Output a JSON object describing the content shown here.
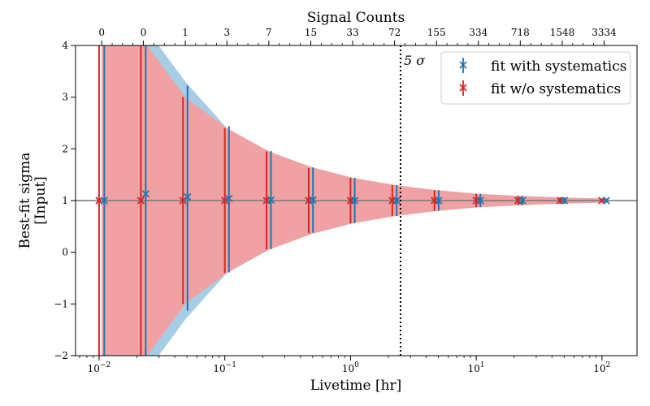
{
  "chart_data": {
    "type": "scatter",
    "title": "Signal Counts",
    "xlabel": "Livetime [hr]",
    "ylabel_line1": "Best-fit sigma",
    "ylabel_line2": "[Input]",
    "x_scale": "log",
    "xlim": [
      0.0065,
      190
    ],
    "ylim": [
      -2,
      4
    ],
    "x_ticks": [
      0.01,
      0.1,
      1,
      10,
      100
    ],
    "x_tick_labels": [
      "10−2",
      "10−1",
      "100",
      "101",
      "102"
    ],
    "y_ticks": [
      -2,
      -1,
      0,
      1,
      2,
      3,
      4
    ],
    "y_tick_labels": [
      "−2",
      "−1",
      "0",
      "1",
      "2",
      "3",
      "4"
    ],
    "top_axis_label": "Signal Counts",
    "top_ticks_livetime": [
      0.0105,
      0.0225,
      0.0485,
      0.104,
      0.224,
      0.483,
      1.04,
      2.24,
      4.83,
      10.4,
      22.4,
      48.3,
      104
    ],
    "top_tick_labels": [
      "0",
      "0",
      "1",
      "3",
      "7",
      "15",
      "33",
      "72",
      "155",
      "334",
      "718",
      "1548",
      "3334"
    ],
    "reference_line_y": 1,
    "vline": {
      "x": 2.5,
      "label": "5 σ",
      "style": "dotted"
    },
    "legend": {
      "position": "top-right",
      "entries": [
        {
          "label": "fit with systematics",
          "color": "#1f77b4"
        },
        {
          "label": "fit w/o systematics",
          "color": "#d62728"
        }
      ]
    },
    "bands": [
      {
        "series": "fit with systematics",
        "color": "#a6cde6",
        "x": [
          0.0105,
          0.0225,
          0.0485,
          0.104,
          0.224,
          0.483,
          1.04,
          2.24,
          4.83,
          10.4,
          22.4,
          48.3,
          104
        ],
        "upper": [
          4.5,
          4.4,
          3.3,
          2.4,
          1.95,
          1.65,
          1.44,
          1.3,
          1.2,
          1.13,
          1.09,
          1.06,
          1.04
        ],
        "lower": [
          -2.5,
          -2.4,
          -1.3,
          -0.4,
          0.05,
          0.35,
          0.56,
          0.7,
          0.8,
          0.87,
          0.91,
          0.94,
          0.96
        ]
      },
      {
        "series": "fit w/o systematics",
        "color": "#f0a1a3",
        "x": [
          0.0105,
          0.0225,
          0.0485,
          0.104,
          0.224,
          0.483,
          1.04,
          2.24,
          4.83,
          10.4,
          22.4,
          48.3,
          104
        ],
        "upper": [
          4.5,
          4.1,
          3.0,
          2.4,
          1.95,
          1.65,
          1.44,
          1.3,
          1.2,
          1.13,
          1.09,
          1.06,
          1.04
        ],
        "lower": [
          -2.5,
          -2.1,
          -1.0,
          -0.4,
          0.05,
          0.35,
          0.56,
          0.7,
          0.8,
          0.87,
          0.91,
          0.94,
          0.96
        ]
      }
    ],
    "series": [
      {
        "name": "fit w/o systematics",
        "color": "#d62728",
        "x": [
          0.01,
          0.0215,
          0.0465,
          0.1,
          0.215,
          0.465,
          1.0,
          2.15,
          4.65,
          10.0,
          21.5,
          46.5,
          100
        ],
        "y": [
          1.0,
          1.0,
          1.0,
          1.0,
          1.0,
          1.0,
          1.0,
          1.0,
          1.0,
          1.0,
          1.0,
          1.0,
          1.0
        ],
        "err_low": [
          4.0,
          3.1,
          2.0,
          1.4,
          0.95,
          0.63,
          0.44,
          0.3,
          0.2,
          0.13,
          0.09,
          0.06,
          0.04
        ],
        "err_high": [
          3.5,
          3.1,
          2.0,
          1.4,
          0.95,
          0.63,
          0.44,
          0.3,
          0.2,
          0.13,
          0.09,
          0.06,
          0.04
        ]
      },
      {
        "name": "fit with systematics",
        "color": "#1f77b4",
        "x": [
          0.011,
          0.0235,
          0.0505,
          0.108,
          0.233,
          0.503,
          1.08,
          2.33,
          5.03,
          10.8,
          23.3,
          50.3,
          108
        ],
        "y": [
          1.0,
          1.13,
          1.07,
          1.04,
          1.01,
          1.01,
          1.0,
          1.0,
          1.0,
          1.0,
          1.0,
          1.0,
          1.0
        ],
        "err_low": [
          4.0,
          3.4,
          2.2,
          1.43,
          0.95,
          0.63,
          0.44,
          0.3,
          0.2,
          0.13,
          0.09,
          0.06,
          0.04
        ],
        "err_high": [
          3.5,
          2.9,
          2.15,
          1.4,
          0.95,
          0.63,
          0.44,
          0.3,
          0.2,
          0.13,
          0.09,
          0.06,
          0.04
        ]
      }
    ]
  }
}
